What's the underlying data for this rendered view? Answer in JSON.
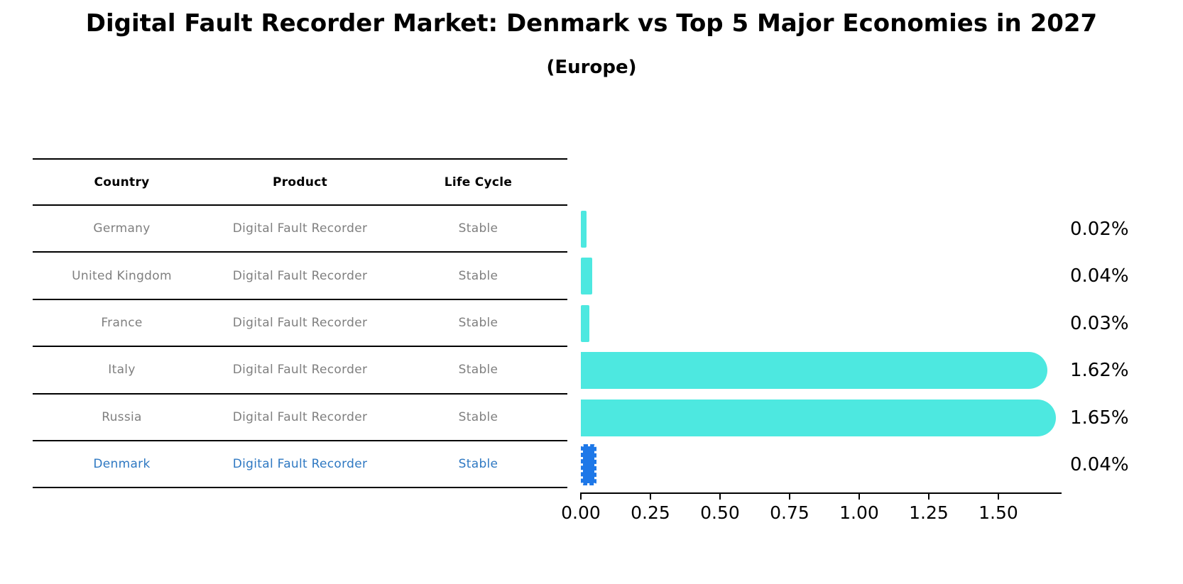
{
  "figure": {
    "title": "Digital Fault Recorder Market: Denmark vs Top 5 Major Economies in 2027",
    "subtitle": "(Europe)"
  },
  "table": {
    "headers": [
      "Country",
      "Product",
      "Life Cycle"
    ],
    "rows": [
      {
        "cells": [
          "Germany",
          "Digital Fault Recorder",
          "Stable"
        ],
        "highlight": false
      },
      {
        "cells": [
          "United Kingdom",
          "Digital Fault Recorder",
          "Stable"
        ],
        "highlight": false
      },
      {
        "cells": [
          "France",
          "Digital Fault Recorder",
          "Stable"
        ],
        "highlight": false
      },
      {
        "cells": [
          "Italy",
          "Digital Fault Recorder",
          "Stable"
        ],
        "highlight": false
      },
      {
        "cells": [
          "Russia",
          "Digital Fault Recorder",
          "Stable"
        ],
        "highlight": false
      },
      {
        "cells": [
          "Denmark",
          "Digital Fault Recorder",
          "Stable"
        ],
        "highlight": true
      }
    ]
  },
  "chart_data": {
    "type": "bar",
    "orientation": "horizontal",
    "title": "Digital Fault Recorder Market: Denmark vs Top 5 Major Economies in 2027",
    "subtitle": "(Europe)",
    "categories": [
      "Germany",
      "United Kingdom",
      "France",
      "Italy",
      "Russia",
      "Denmark"
    ],
    "values": [
      0.02,
      0.04,
      0.03,
      1.62,
      1.65,
      0.04
    ],
    "value_labels": [
      "0.02%",
      "0.04%",
      "0.03%",
      "1.62%",
      "1.65%",
      "0.04%"
    ],
    "x_ticks": [
      "0.00",
      "0.25",
      "0.50",
      "0.75",
      "1.00",
      "1.25",
      "1.50"
    ],
    "xlim": [
      0,
      1.725
    ],
    "grid": "off",
    "legend": "none",
    "bar_color": "#4de8e0",
    "highlight_index": 5,
    "highlight_color": "#1e78e8",
    "muted_text_color": "#7f7f7f",
    "highlight_text_color": "#2e78c2"
  }
}
